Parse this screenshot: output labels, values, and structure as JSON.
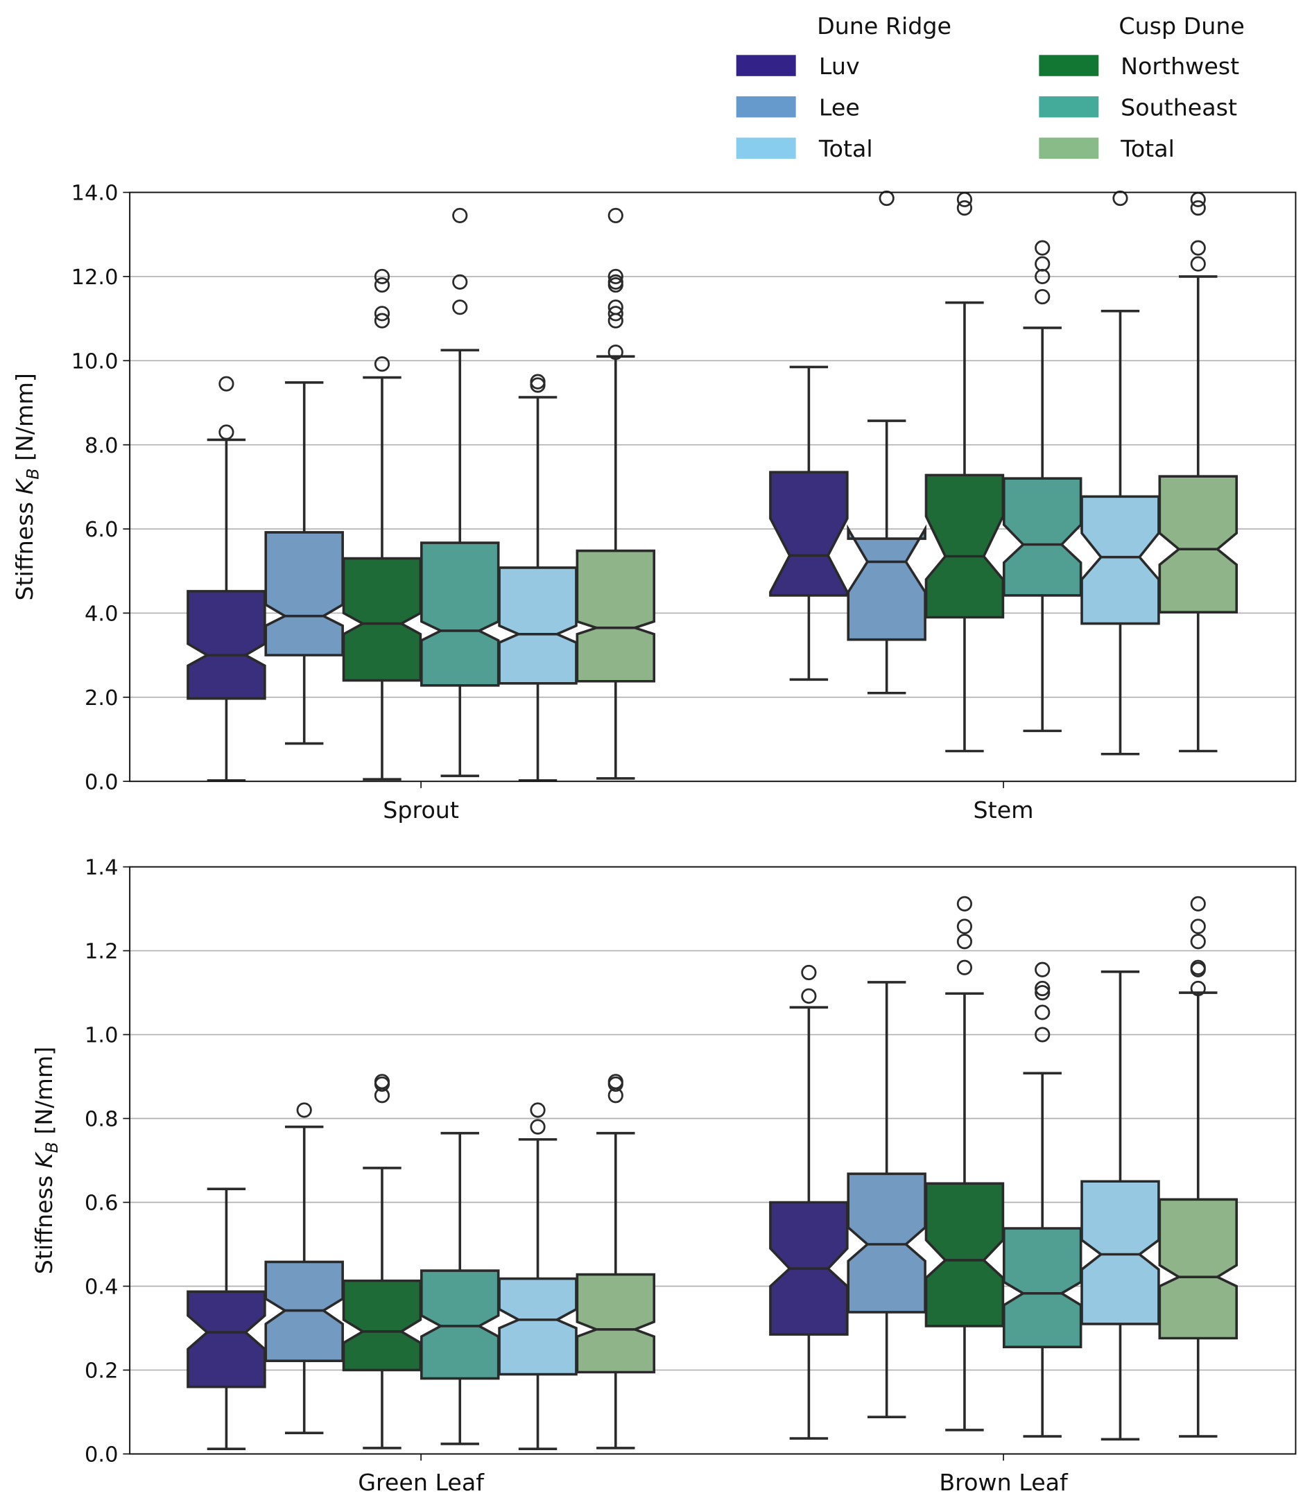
{
  "legend": {
    "groups": [
      {
        "title": "Dune Ridge",
        "items": [
          {
            "label": "Luv",
            "color": "#332288"
          },
          {
            "label": "Lee",
            "color": "#6699cc"
          },
          {
            "label": "Total",
            "color": "#88ccee"
          }
        ]
      },
      {
        "title": "Cusp Dune",
        "items": [
          {
            "label": "Northwest",
            "color": "#117733"
          },
          {
            "label": "Southeast",
            "color": "#44aa99"
          },
          {
            "label": "Total",
            "color": "#88bb88"
          }
        ]
      }
    ]
  },
  "chart_data": [
    {
      "type": "box",
      "notched": true,
      "ylabel": "Stiffness K_B [N/mm]",
      "ylim": [
        0,
        14
      ],
      "yticks": [
        "0.0",
        "2.0",
        "4.0",
        "6.0",
        "8.0",
        "10.0",
        "12.0",
        "14.0"
      ],
      "grid": "y",
      "series_order": [
        "Luv",
        "Lee",
        "Northwest",
        "Southeast",
        "Dune Ridge Total",
        "Cusp Dune Total"
      ],
      "series_fill": [
        "#3a2f7c",
        "#739bc2",
        "#1e6b37",
        "#519e92",
        "#97c8e2",
        "#8fb48a"
      ],
      "categories": [
        {
          "label": "Sprout",
          "boxes": [
            {
              "whislo": 0.02,
              "q1": 1.97,
              "med": 3.0,
              "q3": 4.52,
              "whishi": 8.12,
              "notch": [
                2.75,
                3.27
              ],
              "fliers": [
                8.3,
                9.45
              ]
            },
            {
              "whislo": 0.9,
              "q1": 3.0,
              "med": 3.93,
              "q3": 5.92,
              "whishi": 9.48,
              "notch": [
                3.7,
                4.2
              ],
              "fliers": []
            },
            {
              "whislo": 0.05,
              "q1": 2.4,
              "med": 3.75,
              "q3": 5.3,
              "whishi": 9.6,
              "notch": [
                3.5,
                4.0
              ],
              "fliers": [
                9.92,
                10.95,
                11.12,
                11.8,
                12.0
              ]
            },
            {
              "whislo": 0.13,
              "q1": 2.28,
              "med": 3.58,
              "q3": 5.67,
              "whishi": 10.25,
              "notch": [
                3.35,
                3.8
              ],
              "fliers": [
                11.27,
                11.87,
                13.45
              ]
            },
            {
              "whislo": 0.02,
              "q1": 2.33,
              "med": 3.5,
              "q3": 5.08,
              "whishi": 9.13,
              "notch": [
                3.3,
                3.7
              ],
              "fliers": [
                9.42,
                9.5
              ]
            },
            {
              "whislo": 0.07,
              "q1": 2.38,
              "med": 3.65,
              "q3": 5.48,
              "whishi": 10.1,
              "notch": [
                3.5,
                3.8
              ],
              "fliers": [
                10.2,
                10.95,
                11.12,
                11.27,
                11.8,
                11.87,
                12.0,
                13.45
              ]
            }
          ]
        },
        {
          "label": "Stem",
          "boxes": [
            {
              "whislo": 2.42,
              "q1": 4.42,
              "med": 5.37,
              "q3": 7.35,
              "whishi": 9.85,
              "notch": [
                4.5,
                6.25
              ],
              "fliers": []
            },
            {
              "whislo": 2.1,
              "q1": 3.37,
              "med": 5.22,
              "q3": 5.77,
              "whishi": 8.57,
              "notch": [
                4.5,
                6.0
              ],
              "fliers": [
                13.86
              ]
            },
            {
              "whislo": 0.72,
              "q1": 3.9,
              "med": 5.35,
              "q3": 7.28,
              "whishi": 11.38,
              "notch": [
                4.8,
                6.3
              ],
              "fliers": [
                13.63,
                13.83
              ]
            },
            {
              "whislo": 1.2,
              "q1": 4.42,
              "med": 5.63,
              "q3": 7.2,
              "whishi": 10.78,
              "notch": [
                5.2,
                6.1
              ],
              "fliers": [
                11.52,
                12.0,
                12.3,
                12.68
              ]
            },
            {
              "whislo": 0.65,
              "q1": 3.75,
              "med": 5.33,
              "q3": 6.77,
              "whishi": 11.18,
              "notch": [
                4.8,
                5.9
              ],
              "fliers": [
                13.86
              ]
            },
            {
              "whislo": 0.72,
              "q1": 4.02,
              "med": 5.52,
              "q3": 7.25,
              "whishi": 12.0,
              "notch": [
                5.15,
                5.9
              ],
              "fliers": [
                12.3,
                12.68,
                13.63,
                13.83
              ]
            }
          ]
        }
      ]
    },
    {
      "type": "box",
      "notched": true,
      "ylabel": "Stiffness K_B [N/mm]",
      "ylim": [
        0,
        1.4
      ],
      "yticks": [
        "0.0",
        "0.2",
        "0.4",
        "0.6",
        "0.8",
        "1.0",
        "1.2",
        "1.4"
      ],
      "grid": "y",
      "series_order": [
        "Luv",
        "Lee",
        "Northwest",
        "Southeast",
        "Dune Ridge Total",
        "Cusp Dune Total"
      ],
      "series_fill": [
        "#3a2f7c",
        "#739bc2",
        "#1e6b37",
        "#519e92",
        "#97c8e2",
        "#8fb48a"
      ],
      "categories": [
        {
          "label": "Green Leaf",
          "boxes": [
            {
              "whislo": 0.012,
              "q1": 0.16,
              "med": 0.29,
              "q3": 0.387,
              "whishi": 0.632,
              "notch": [
                0.25,
                0.33
              ],
              "fliers": []
            },
            {
              "whislo": 0.05,
              "q1": 0.222,
              "med": 0.342,
              "q3": 0.458,
              "whishi": 0.78,
              "notch": [
                0.31,
                0.37
              ],
              "fliers": [
                0.82
              ]
            },
            {
              "whislo": 0.014,
              "q1": 0.2,
              "med": 0.292,
              "q3": 0.413,
              "whishi": 0.682,
              "notch": [
                0.265,
                0.32
              ],
              "fliers": [
                0.855,
                0.882,
                0.888
              ]
            },
            {
              "whislo": 0.024,
              "q1": 0.18,
              "med": 0.305,
              "q3": 0.437,
              "whishi": 0.765,
              "notch": [
                0.28,
                0.33
              ],
              "fliers": []
            },
            {
              "whislo": 0.012,
              "q1": 0.19,
              "med": 0.32,
              "q3": 0.418,
              "whishi": 0.75,
              "notch": [
                0.3,
                0.345
              ],
              "fliers": [
                0.78,
                0.82
              ]
            },
            {
              "whislo": 0.014,
              "q1": 0.195,
              "med": 0.297,
              "q3": 0.428,
              "whishi": 0.765,
              "notch": [
                0.28,
                0.315
              ],
              "fliers": [
                0.855,
                0.882,
                0.888
              ]
            }
          ]
        },
        {
          "label": "Brown Leaf",
          "boxes": [
            {
              "whislo": 0.037,
              "q1": 0.285,
              "med": 0.442,
              "q3": 0.6,
              "whishi": 1.065,
              "notch": [
                0.4,
                0.49
              ],
              "fliers": [
                1.092,
                1.148
              ]
            },
            {
              "whislo": 0.088,
              "q1": 0.338,
              "med": 0.5,
              "q3": 0.668,
              "whishi": 1.125,
              "notch": [
                0.46,
                0.54
              ],
              "fliers": []
            },
            {
              "whislo": 0.057,
              "q1": 0.305,
              "med": 0.462,
              "q3": 0.645,
              "whishi": 1.098,
              "notch": [
                0.42,
                0.51
              ],
              "fliers": [
                1.16,
                1.222,
                1.258,
                1.312
              ]
            },
            {
              "whislo": 0.042,
              "q1": 0.255,
              "med": 0.383,
              "q3": 0.538,
              "whishi": 0.908,
              "notch": [
                0.355,
                0.41
              ],
              "fliers": [
                1.0,
                1.053,
                1.1,
                1.11,
                1.155
              ]
            },
            {
              "whislo": 0.035,
              "q1": 0.31,
              "med": 0.476,
              "q3": 0.65,
              "whishi": 1.15,
              "notch": [
                0.44,
                0.51
              ],
              "fliers": []
            },
            {
              "whislo": 0.042,
              "q1": 0.276,
              "med": 0.422,
              "q3": 0.607,
              "whishi": 1.1,
              "notch": [
                0.4,
                0.45
              ],
              "fliers": [
                1.11,
                1.155,
                1.16,
                1.222,
                1.258,
                1.312
              ]
            }
          ]
        }
      ]
    }
  ]
}
